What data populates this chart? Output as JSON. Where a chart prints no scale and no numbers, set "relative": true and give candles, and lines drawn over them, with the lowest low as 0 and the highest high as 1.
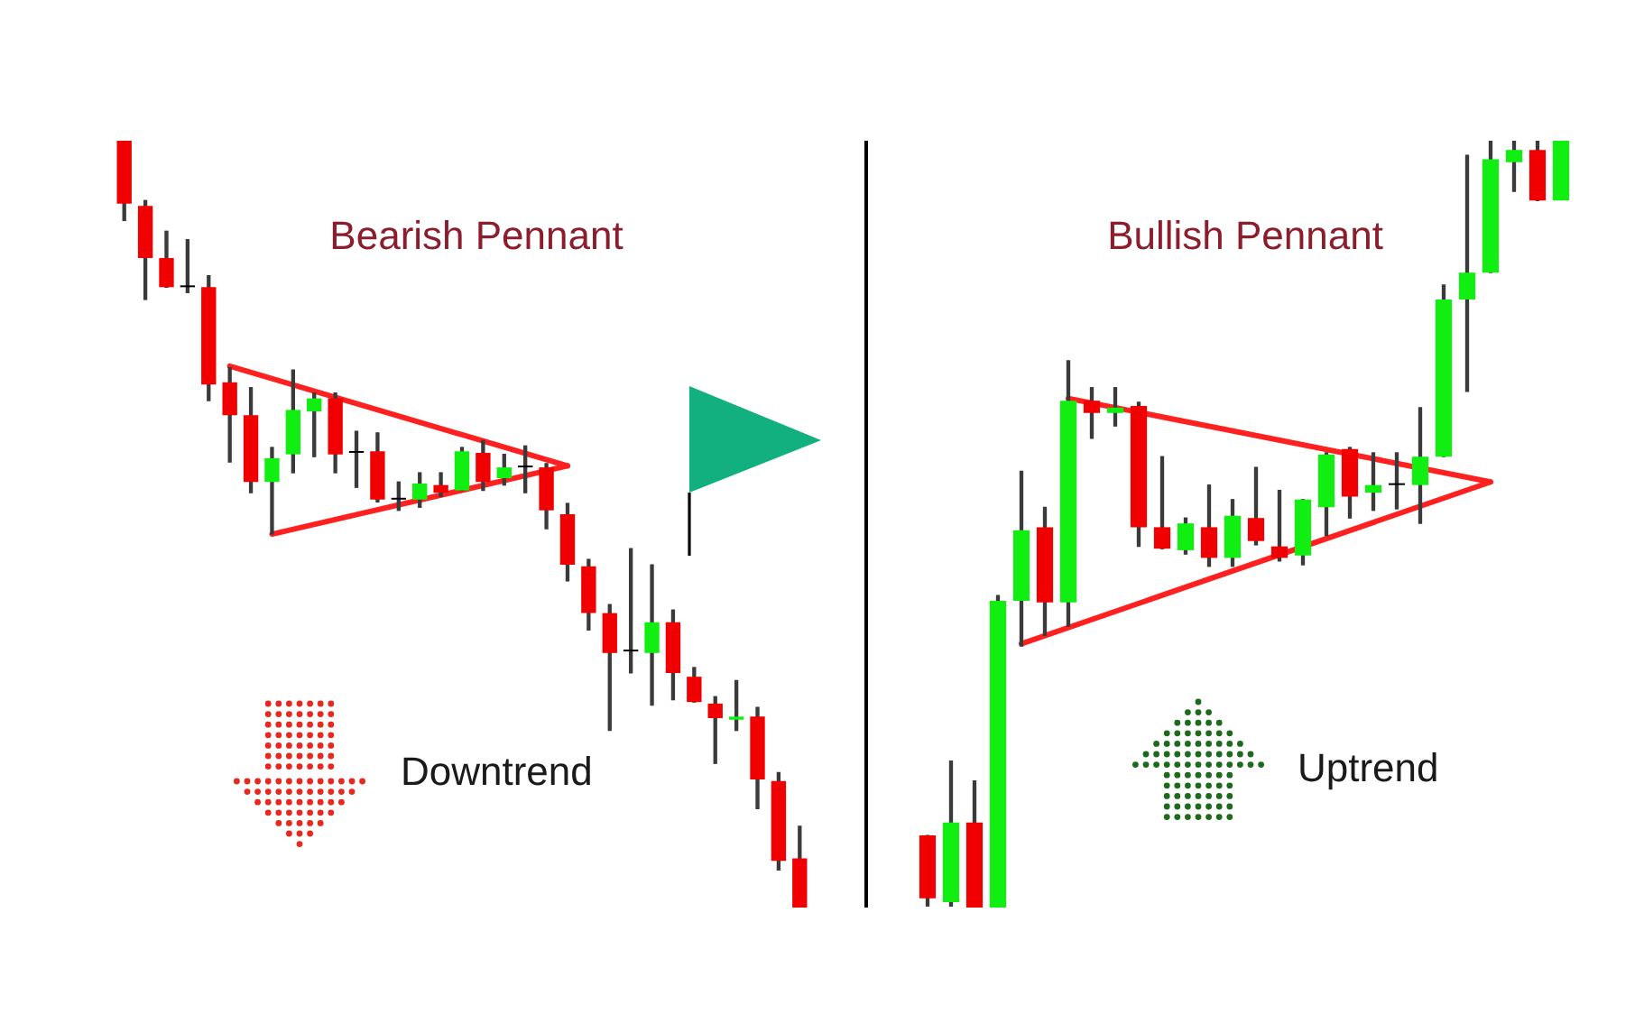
{
  "chart_data": [
    {
      "type": "candlestick",
      "title": "Bearish Pennant",
      "annotations": [
        "Downtrend"
      ],
      "relative": true,
      "categories": [
        null,
        null,
        null,
        null,
        null,
        null,
        null,
        null,
        null,
        null,
        null,
        null,
        null,
        null,
        null,
        null,
        null,
        null,
        null,
        null,
        null,
        null,
        null,
        null,
        null,
        null,
        null,
        null,
        null,
        null,
        null,
        null,
        null
      ],
      "ohlc": [
        [
          1,
          1,
          0.896,
          0.918
        ],
        [
          0.915,
          0.922,
          0.793,
          0.847
        ],
        [
          0.847,
          0.882,
          0.809,
          0.809
        ],
        [
          0.809,
          0.871,
          0.802,
          0.809
        ],
        [
          0.809,
          0.824,
          0.661,
          0.682
        ],
        [
          0.685,
          0.704,
          0.581,
          0.642
        ],
        [
          0.642,
          0.678,
          0.541,
          0.555
        ],
        [
          0.555,
          0.6,
          0.487,
          0.586
        ],
        [
          0.591,
          0.701,
          0.567,
          0.649
        ],
        [
          0.647,
          0.671,
          0.588,
          0.664
        ],
        [
          0.664,
          0.671,
          0.567,
          0.591
        ],
        [
          0.593,
          0.621,
          0.548,
          0.593
        ],
        [
          0.595,
          0.619,
          0.529,
          0.532
        ],
        [
          0.532,
          0.555,
          0.518,
          0.532
        ],
        [
          0.532,
          0.567,
          0.522,
          0.553
        ],
        [
          0.551,
          0.567,
          0.536,
          0.541
        ],
        [
          0.544,
          0.6,
          0.544,
          0.595
        ],
        [
          0.593,
          0.609,
          0.544,
          0.555
        ],
        [
          0.56,
          0.591,
          0.551,
          0.574
        ],
        [
          0.574,
          0.602,
          0.541,
          0.574
        ],
        [
          0.574,
          0.579,
          0.494,
          0.518
        ],
        [
          0.513,
          0.527,
          0.426,
          0.447
        ],
        [
          0.445,
          0.454,
          0.362,
          0.384
        ],
        [
          0.384,
          0.395,
          0.231,
          0.332
        ],
        [
          0.334,
          0.468,
          0.306,
          0.334
        ],
        [
          0.332,
          0.447,
          0.264,
          0.372
        ],
        [
          0.372,
          0.388,
          0.271,
          0.306
        ],
        [
          0.301,
          0.313,
          0.268,
          0.268
        ],
        [
          0.266,
          0.275,
          0.188,
          0.247
        ],
        [
          0.245,
          0.296,
          0.231,
          0.249
        ],
        [
          0.249,
          0.261,
          0.129,
          0.167
        ],
        [
          0.165,
          0.176,
          0.049,
          0.061
        ],
        [
          0.064,
          0.106,
          0,
          0
        ]
      ],
      "colors": [
        "#f00000",
        "#f00000",
        "#f00000",
        "#000000",
        "#f00000",
        "#f00000",
        "#f00000",
        "#11ee11",
        "#11ee11",
        "#11ee11",
        "#f00000",
        "#000000",
        "#f00000",
        "#000000",
        "#11ee11",
        "#f00000",
        "#11ee11",
        "#f00000",
        "#11ee11",
        "#000000",
        "#f00000",
        "#f00000",
        "#f00000",
        "#f00000",
        "#000000",
        "#11ee11",
        "#f00000",
        "#f00000",
        "#f00000",
        "#11ee11",
        "#f00000",
        "#f00000",
        "#f00000"
      ],
      "series": [
        {
          "type": "line",
          "values": [
            null,
            null,
            null,
            null,
            null,
            0.706,
            null,
            null,
            null,
            null,
            null,
            null,
            null,
            null,
            null,
            null,
            null,
            null,
            null,
            null,
            null,
            0.576,
            null,
            null,
            null,
            null,
            null,
            null,
            null,
            null,
            null,
            null,
            null
          ],
          "color": "#ff2020"
        },
        {
          "type": "line",
          "values": [
            null,
            null,
            null,
            null,
            null,
            null,
            null,
            0.487,
            null,
            null,
            null,
            null,
            null,
            null,
            null,
            null,
            null,
            null,
            null,
            null,
            null,
            0.576,
            null,
            null,
            null,
            null,
            null,
            null,
            null,
            null,
            null,
            null,
            null
          ],
          "color": "#ff2020"
        }
      ]
    },
    {
      "type": "candlestick",
      "title": "Bullish Pennant",
      "annotations": [
        "Uptrend"
      ],
      "relative": true,
      "categories": [
        null,
        null,
        null,
        null,
        null,
        null,
        null,
        null,
        null,
        null,
        null,
        null,
        null,
        null,
        null,
        null,
        null,
        null,
        null,
        null,
        null,
        null,
        null,
        null,
        null,
        null,
        null,
        null
      ],
      "ohlc": [
        [
          0.094,
          0.094,
          0.002,
          0.012
        ],
        [
          0.007,
          0.191,
          0.002,
          0.111
        ],
        [
          0.111,
          0.165,
          0,
          0
        ],
        [
          0,
          0.407,
          0,
          0.4
        ],
        [
          0.4,
          0.569,
          0.341,
          0.492
        ],
        [
          0.496,
          0.522,
          0.355,
          0.398
        ],
        [
          0.398,
          0.713,
          0.367,
          0.661
        ],
        [
          0.661,
          0.678,
          0.612,
          0.645
        ],
        [
          0.645,
          0.678,
          0.628,
          0.652
        ],
        [
          0.654,
          0.659,
          0.471,
          0.496
        ],
        [
          0.496,
          0.588,
          0.468,
          0.468
        ],
        [
          0.466,
          0.508,
          0.461,
          0.501
        ],
        [
          0.496,
          0.551,
          0.445,
          0.456
        ],
        [
          0.456,
          0.532,
          0.445,
          0.511
        ],
        [
          0.508,
          0.574,
          0.473,
          0.478
        ],
        [
          0.471,
          0.544,
          0.452,
          0.456
        ],
        [
          0.459,
          0.532,
          0.447,
          0.532
        ],
        [
          0.522,
          0.593,
          0.485,
          0.591
        ],
        [
          0.598,
          0.6,
          0.508,
          0.536
        ],
        [
          0.541,
          0.593,
          0.518,
          0.551
        ],
        [
          0.551,
          0.593,
          0.52,
          0.551
        ],
        [
          0.551,
          0.652,
          0.501,
          0.588
        ],
        [
          0.588,
          0.812,
          0.588,
          0.793
        ],
        [
          0.793,
          0.981,
          0.673,
          0.828
        ],
        [
          0.828,
          1,
          0.828,
          0.976
        ],
        [
          0.972,
          1,
          0.934,
          0.988
        ],
        [
          0.988,
          1,
          0.922,
          0.922
        ],
        [
          0.922,
          1,
          0.922,
          1
        ]
      ],
      "colors": [
        "#f00000",
        "#11ee11",
        "#f00000",
        "#11ee11",
        "#11ee11",
        "#f00000",
        "#11ee11",
        "#f00000",
        "#11ee11",
        "#f00000",
        "#f00000",
        "#11ee11",
        "#f00000",
        "#11ee11",
        "#f00000",
        "#f00000",
        "#11ee11",
        "#11ee11",
        "#f00000",
        "#11ee11",
        "#000000",
        "#11ee11",
        "#11ee11",
        "#11ee11",
        "#11ee11",
        "#11ee11",
        "#f00000",
        "#11ee11"
      ],
      "series": [
        {
          "type": "line",
          "values": [
            null,
            null,
            null,
            null,
            null,
            null,
            0.664,
            null,
            null,
            null,
            null,
            null,
            null,
            null,
            null,
            null,
            null,
            null,
            null,
            null,
            null,
            null,
            null,
            null,
            0.555,
            null,
            null,
            null
          ],
          "color": "#ff2020"
        },
        {
          "type": "line",
          "values": [
            null,
            null,
            null,
            null,
            0.344,
            null,
            null,
            null,
            null,
            null,
            null,
            null,
            null,
            null,
            null,
            null,
            null,
            null,
            null,
            null,
            null,
            null,
            null,
            null,
            0.555,
            null,
            null,
            null
          ],
          "color": "#ff2020"
        }
      ]
    }
  ]
}
